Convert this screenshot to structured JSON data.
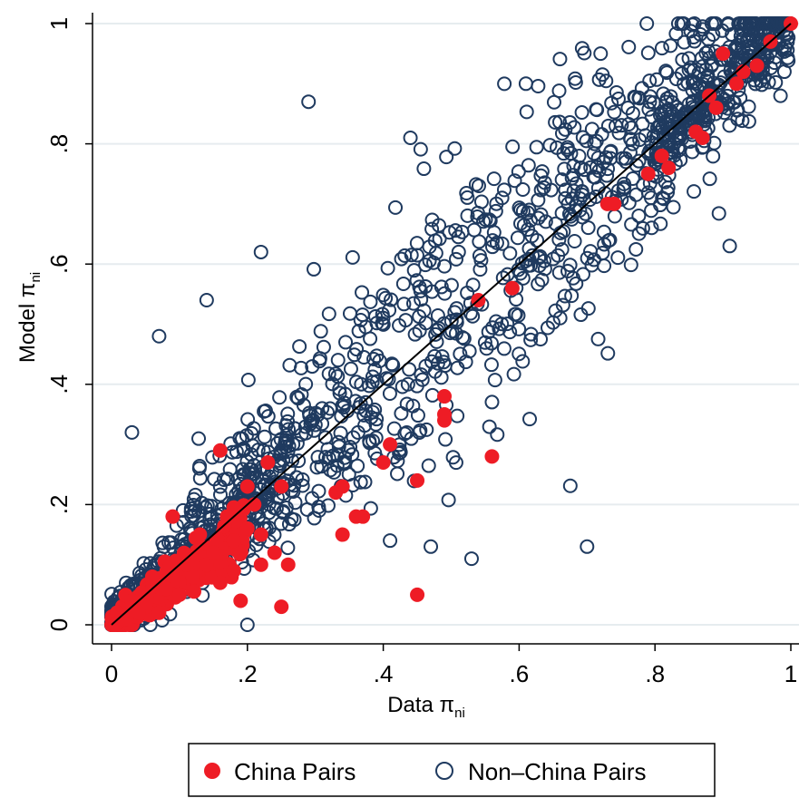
{
  "chart_data": {
    "type": "scatter",
    "xlabel": "Data π",
    "xlabel_sub": "ni",
    "ylabel": "Model π",
    "ylabel_sub": "ni",
    "xlim": [
      0,
      1
    ],
    "ylim": [
      0,
      1
    ],
    "x_ticks": [
      0,
      0.2,
      0.4,
      0.6,
      0.8,
      1
    ],
    "x_tick_labels": [
      "0",
      ".2",
      ".4",
      ".6",
      ".8",
      "1"
    ],
    "y_ticks": [
      0,
      0.2,
      0.4,
      0.6,
      0.8,
      1
    ],
    "y_tick_labels": [
      "0",
      ".2",
      ".4",
      ".6",
      ".8",
      "1"
    ],
    "grid": "horizontal",
    "legend_position": "bottom",
    "reference_line": {
      "from": [
        0,
        0
      ],
      "to": [
        1,
        1
      ],
      "color": "#000000"
    },
    "colors": {
      "china": "#ee1c25",
      "non_china": "#1f3a5f",
      "grid": "#e6ecef"
    },
    "series": [
      {
        "name": "China Pairs",
        "marker": "filled-circle",
        "points": [
          [
            0.16,
            0.29
          ],
          [
            0.23,
            0.27
          ],
          [
            0.25,
            0.23
          ],
          [
            0.09,
            0.18
          ],
          [
            0.17,
            0.18
          ],
          [
            0.2,
            0.23
          ],
          [
            0.41,
            0.3
          ],
          [
            0.49,
            0.38
          ],
          [
            0.56,
            0.28
          ],
          [
            0.54,
            0.54
          ],
          [
            0.59,
            0.56
          ],
          [
            0.45,
            0.24
          ],
          [
            0.4,
            0.27
          ],
          [
            0.49,
            0.34
          ],
          [
            0.49,
            0.35
          ],
          [
            0.33,
            0.22
          ],
          [
            0.34,
            0.23
          ],
          [
            0.36,
            0.18
          ],
          [
            0.37,
            0.18
          ],
          [
            0.34,
            0.15
          ],
          [
            0.45,
            0.05
          ],
          [
            0.25,
            0.03
          ],
          [
            0.19,
            0.04
          ],
          [
            0.22,
            0.1
          ],
          [
            0.26,
            0.1
          ],
          [
            0.73,
            0.7
          ],
          [
            0.74,
            0.7
          ],
          [
            0.79,
            0.75
          ],
          [
            0.81,
            0.78
          ],
          [
            0.82,
            0.76
          ],
          [
            0.86,
            0.82
          ],
          [
            0.87,
            0.81
          ],
          [
            0.89,
            0.86
          ],
          [
            0.88,
            0.88
          ],
          [
            0.9,
            0.95
          ],
          [
            0.92,
            0.9
          ],
          [
            0.93,
            0.92
          ],
          [
            0.95,
            0.93
          ],
          [
            0.97,
            0.97
          ],
          [
            1.0,
            1.0
          ],
          [
            0.05,
            0.03
          ],
          [
            0.08,
            0.06
          ],
          [
            0.1,
            0.05
          ],
          [
            0.12,
            0.08
          ],
          [
            0.14,
            0.1
          ],
          [
            0.15,
            0.12
          ],
          [
            0.18,
            0.14
          ],
          [
            0.2,
            0.16
          ],
          [
            0.22,
            0.15
          ],
          [
            0.24,
            0.12
          ],
          [
            0.21,
            0.2
          ],
          [
            0.13,
            0.15
          ],
          [
            0.11,
            0.1
          ],
          [
            0.06,
            0.08
          ],
          [
            0.04,
            0.02
          ],
          [
            0.02,
            0.01
          ],
          [
            0.03,
            0.04
          ],
          [
            0.07,
            0.02
          ],
          [
            0.16,
            0.07
          ],
          [
            0.18,
            0.09
          ]
        ]
      },
      {
        "name": "Non–China Pairs",
        "marker": "hollow-circle",
        "points": [
          [
            0.29,
            0.87
          ],
          [
            0.07,
            0.48
          ],
          [
            0.2,
            0.0
          ],
          [
            0.03,
            0.32
          ],
          [
            0.91,
            0.63
          ],
          [
            0.7,
            0.13
          ],
          [
            0.53,
            0.11
          ],
          [
            0.47,
            0.13
          ],
          [
            0.41,
            0.14
          ],
          [
            0.14,
            0.54
          ],
          [
            0.22,
            0.62
          ],
          [
            0.61,
            0.9
          ],
          [
            0.72,
            0.95
          ],
          [
            0.31,
            0.36
          ],
          [
            0.44,
            0.81
          ]
        ]
      }
    ]
  }
}
